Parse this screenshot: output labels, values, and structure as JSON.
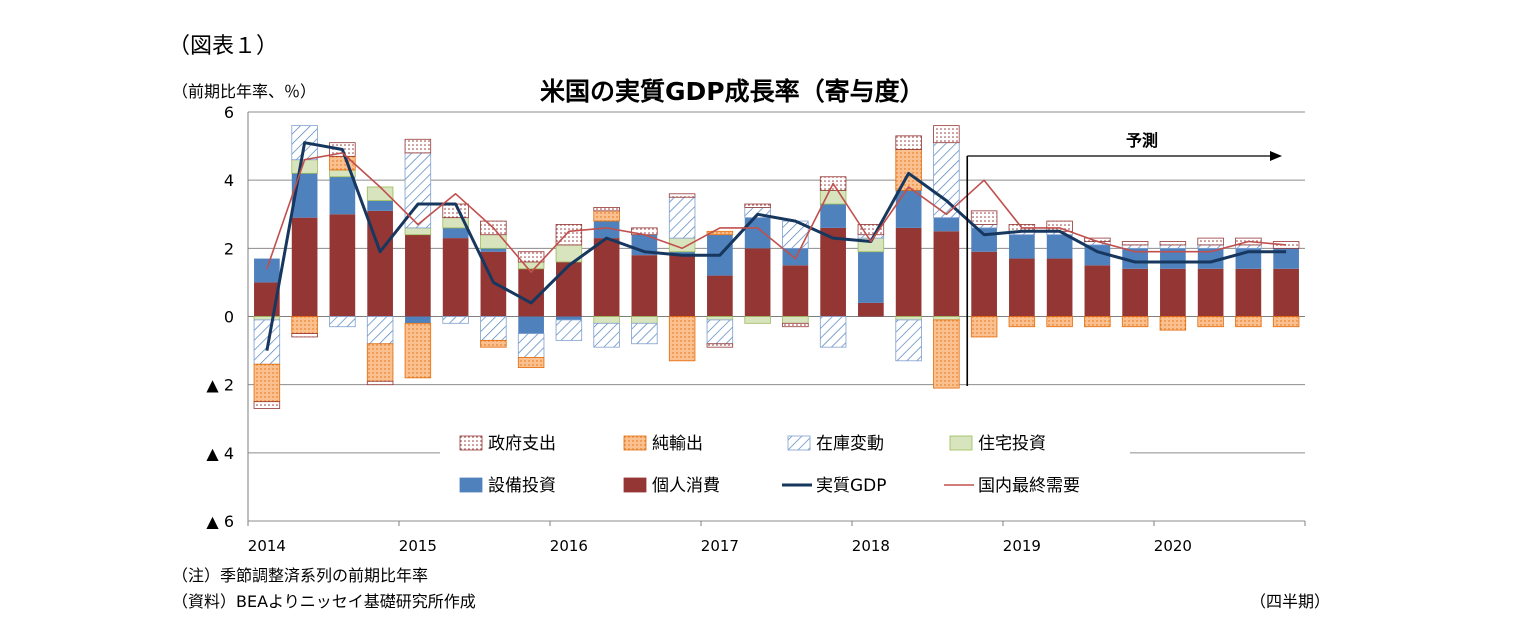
{
  "figure_label": "（図表１）",
  "unit_label": "（前期比年率、％）",
  "note": "（注）季節調整済系列の前期比年率",
  "source": "（資料）BEAよりニッセイ基礎研究所作成",
  "period_label": "（四半期）",
  "chart_data": {
    "type": "bar",
    "stacked": true,
    "title": "米国の実質GDP成長率（寄与度）",
    "ylim": [
      -6,
      6
    ],
    "y_ticks": [
      6,
      4,
      2,
      0,
      -2,
      -4,
      -6
    ],
    "y_tick_labels": [
      "6",
      "4",
      "2",
      "0",
      "▲ 2",
      "▲ 4",
      "▲ 6"
    ],
    "grid": true,
    "legend_position": "bottom-center",
    "x_year_labels": [
      "2014",
      "2015",
      "2016",
      "2017",
      "2018",
      "2019",
      "2020"
    ],
    "categories": [
      "2014Q1",
      "2014Q2",
      "2014Q3",
      "2014Q4",
      "2015Q1",
      "2015Q2",
      "2015Q3",
      "2015Q4",
      "2016Q1",
      "2016Q2",
      "2016Q3",
      "2016Q4",
      "2017Q1",
      "2017Q2",
      "2017Q3",
      "2017Q4",
      "2018Q1",
      "2018Q2",
      "2018Q3",
      "2018Q4",
      "2019Q1",
      "2019Q2",
      "2019Q3",
      "2019Q4",
      "2020Q1",
      "2020Q2",
      "2020Q3",
      "2020Q4"
    ],
    "forecast": {
      "label": "予測",
      "start_index": 19
    },
    "series": [
      {
        "name": "個人消費",
        "kind": "bar",
        "color": "#943634",
        "values": [
          1.0,
          2.9,
          3.0,
          3.1,
          2.4,
          2.3,
          1.9,
          1.4,
          1.6,
          2.3,
          1.8,
          1.8,
          1.2,
          2.0,
          1.5,
          2.6,
          0.4,
          2.6,
          2.5,
          1.9,
          1.7,
          1.7,
          1.5,
          1.4,
          1.4,
          1.4,
          1.4,
          1.4
        ]
      },
      {
        "name": "設備投資",
        "kind": "bar",
        "color": "#4f81bd",
        "values": [
          0.7,
          1.3,
          1.1,
          0.3,
          -0.2,
          0.3,
          0.1,
          -0.5,
          -0.1,
          0.5,
          0.6,
          0.1,
          1.2,
          0.9,
          0.5,
          0.7,
          1.5,
          1.1,
          0.4,
          0.7,
          0.7,
          0.7,
          0.6,
          0.6,
          0.6,
          0.6,
          0.6,
          0.6
        ]
      },
      {
        "name": "住宅投資",
        "kind": "bar",
        "color": "#d7e4bd",
        "values": [
          -0.1,
          0.4,
          0.2,
          0.4,
          0.2,
          0.3,
          0.4,
          0.2,
          0.5,
          -0.2,
          -0.2,
          0.4,
          -0.1,
          -0.2,
          -0.2,
          0.4,
          0.4,
          -0.1,
          -0.1,
          0.0,
          0.0,
          0.0,
          0.0,
          0.0,
          0.0,
          0.0,
          0.0,
          0.0
        ]
      },
      {
        "name": "在庫変動",
        "kind": "bar",
        "color": "#b9cde5",
        "pattern": "diagonal-hatch",
        "values": [
          -1.3,
          1.0,
          -0.3,
          -0.8,
          2.2,
          -0.2,
          -0.7,
          -0.7,
          -0.6,
          -0.7,
          -0.6,
          1.2,
          -0.7,
          0.3,
          0.8,
          -0.9,
          0.1,
          -1.2,
          2.2,
          0.1,
          0.1,
          0.1,
          0.1,
          0.1,
          0.1,
          0.1,
          0.1,
          0.0
        ]
      },
      {
        "name": "純輸出",
        "kind": "bar",
        "color": "#fac090",
        "pattern": "dots",
        "values": [
          -1.1,
          -0.5,
          0.4,
          -1.1,
          -1.6,
          0.0,
          -0.2,
          -0.3,
          0.0,
          0.3,
          0.0,
          -1.3,
          0.1,
          0.0,
          0.0,
          0.0,
          0.0,
          1.2,
          -2.0,
          -0.6,
          -0.3,
          -0.3,
          -0.3,
          -0.3,
          -0.4,
          -0.3,
          -0.3,
          -0.3
        ]
      },
      {
        "name": "政府支出",
        "kind": "bar",
        "color": "#e6b9b8",
        "pattern": "dots",
        "values": [
          -0.2,
          -0.1,
          0.4,
          -0.1,
          0.4,
          0.4,
          0.4,
          0.3,
          0.6,
          0.1,
          0.2,
          0.1,
          -0.1,
          0.1,
          -0.1,
          0.4,
          0.3,
          0.4,
          0.5,
          0.4,
          0.2,
          0.3,
          0.1,
          0.1,
          0.1,
          0.2,
          0.2,
          0.2
        ]
      },
      {
        "name": "実質GDP",
        "kind": "line",
        "color": "#17375e",
        "values": [
          -1.0,
          5.1,
          4.9,
          1.9,
          3.3,
          3.3,
          1.0,
          0.4,
          1.5,
          2.3,
          1.9,
          1.8,
          1.8,
          3.0,
          2.8,
          2.3,
          2.2,
          4.2,
          3.4,
          2.4,
          2.5,
          2.5,
          1.9,
          1.6,
          1.6,
          1.6,
          1.9,
          1.9
        ]
      },
      {
        "name": "国内最終需要",
        "kind": "line",
        "color": "#c0504d",
        "values": [
          1.4,
          4.6,
          4.8,
          3.8,
          2.7,
          3.6,
          2.6,
          1.3,
          2.5,
          2.6,
          2.4,
          2.0,
          2.6,
          2.6,
          1.7,
          3.9,
          2.2,
          3.8,
          3.0,
          4.0,
          2.6,
          2.6,
          2.2,
          1.9,
          1.9,
          1.9,
          2.2,
          2.1
        ]
      }
    ],
    "legend_order": [
      "政府支出",
      "純輸出",
      "在庫変動",
      "住宅投資",
      "設備投資",
      "個人消費",
      "実質GDP",
      "国内最終需要"
    ]
  }
}
